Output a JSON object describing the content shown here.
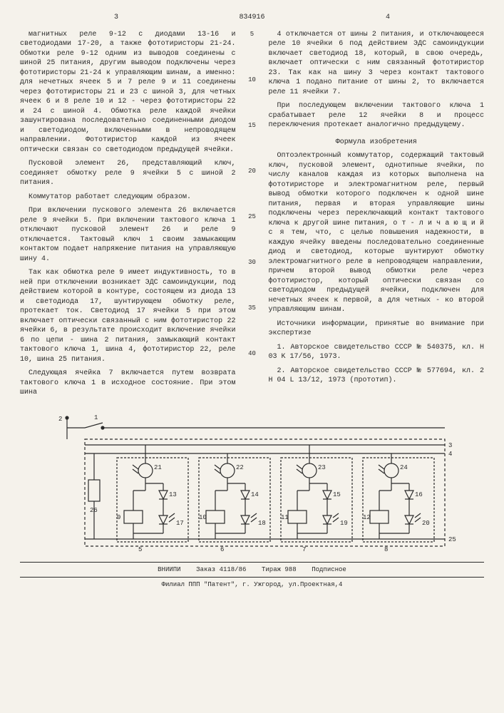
{
  "docNumber": "834916",
  "pageLeft": "3",
  "pageRight": "4",
  "lineNumbers": [
    "5",
    "10",
    "15",
    "20",
    "25",
    "30",
    "35",
    "40"
  ],
  "col1": {
    "p1": "магнитных реле 9-12 с диодами 13-16 и светодиодами 17-20, а также фототиристоры 21-24. Обмотки реле 9-12 одним из выводов соединены с шиной 25 питания, другим выводом подключены через фототиристоры 21-24 к управляющим шинам, а именно: для нечетных ячеек 5 и 7 реле 9 и 11 соединены через фототиристоры 21 и 23 с шиной 3, для четных ячеек 6 и 8 реле 10 и 12 - через фототиристоры 22 и 24 с шиной 4. Обмотка реле каждой ячейки зашунтирована последовательно соединенными диодом и светодиодом, включенными в непроводящем направлении. Фототиристор каждой из ячеек оптически связан со светодиодом предыдущей ячейки.",
    "p2": "Пусковой элемент 26, представляющий ключ, соединяет обмотку реле 9 ячейки 5 с шиной 2 питания.",
    "p3": "Коммутатор работает следующим образом.",
    "p4": "При включении пускового элемента 26 включается реле 9 ячейки 5. При включении тактового ключа 1 отключают пусковой элемент 26 и реле 9 отключается. Тактовый ключ 1 своим замыкающим контактом подает напряжение питания на управляющую шину 4.",
    "p5": "Так как обмотка реле 9 имеет индуктивность, то в ней при отключении возникает ЭДС самоиндукции, под действием которой в контуре, состоящем из диода 13 и светодиода 17, шунтирующем обмотку реле, протекает ток. Светодиод 17 ячейки 5 при этом включает оптически связанный с ним фототиристор 22 ячейки 6, в результате происходит включение ячейки 6 по цепи - шина 2 питания, замыкающий контакт тактового ключа 1, шина 4, фототиристор 22, реле 10, шина 25 питания.",
    "p6": "Следующая ячейка 7 включается путем возврата тактового ключа 1 в исходное состояние. При этом шина"
  },
  "col2": {
    "p1": "4 отключается от шины 2 питания, и отключающееся реле 10 ячейки 6 под действием ЭДС самоиндукции включает светодиод 18, который, в свою очередь, включает оптически с ним связанный фототиристор 23. Так как на шину 3 через контакт тактового ключа 1 подано питание от шины 2, то включается реле 11 ячейки 7.",
    "p2": "При последующем включении тактового ключа 1 срабатывает реле 12 ячейки 8 и процесс переключения протекает аналогично предыдущему.",
    "formulaTitle": "Формула изобретения",
    "p3": "Оптоэлектронный коммутатор, содержащий тактовый ключ, пусковой элемент, однотипные ячейки, по числу каналов каждая из которых выполнена на фототиристоре и электромагнитном реле, первый вывод обмотки которого подключен к одной шине питания, первая и вторая управляющие шины подключены через переключающий контакт тактового ключа к другой шине питания, о т - л и ч а ю щ и й с я  тем, что, с целью повышения надежности, в каждую ячейку введены последовательно соединенные диод и светодиод, которые шунтируют обмотку электромагнитного реле в непроводящем направлении, причем второй вывод обмотки реле через фототиристор, который оптически связан со светодиодом предыдущей ячейки, подключен для нечетных ячеек к первой, а для четных - ко второй управляющим шинам.",
    "sourcesTitle": "Источники информации, принятые во внимание при экспертизе",
    "s1": "1. Авторское свидетельство СССР № 540375, кл. H 03 K 17/56, 1973.",
    "s2": "2. Авторское свидетельство СССР № 577694, кл. 2 H 04 L 13/12, 1973 (прототип)."
  },
  "footer": {
    "line1a": "ВНИИПИ",
    "line1b": "Заказ 4118/86",
    "line1c": "Тираж 988",
    "line1d": "Подписное",
    "line2": "Филиал ППП \"Патент\", г. Ужгород, ул.Проектная,4"
  },
  "diagram": {
    "busLabels": [
      "3",
      "4",
      "25"
    ],
    "topLabel2": "2",
    "topLabel1": "1",
    "leftBox": "26",
    "cells": [
      {
        "photo": "21",
        "diode": "13",
        "relay": "9",
        "led": "17",
        "cellNum": "5"
      },
      {
        "photo": "22",
        "diode": "14",
        "relay": "10",
        "led": "18",
        "cellNum": "6"
      },
      {
        "photo": "23",
        "diode": "15",
        "relay": "11",
        "led": "19",
        "cellNum": "7"
      },
      {
        "photo": "24",
        "diode": "16",
        "relay": "12",
        "led": "20",
        "cellNum": "8"
      }
    ],
    "lineColor": "#2a2a2a",
    "dashColor": "#2a2a2a"
  }
}
